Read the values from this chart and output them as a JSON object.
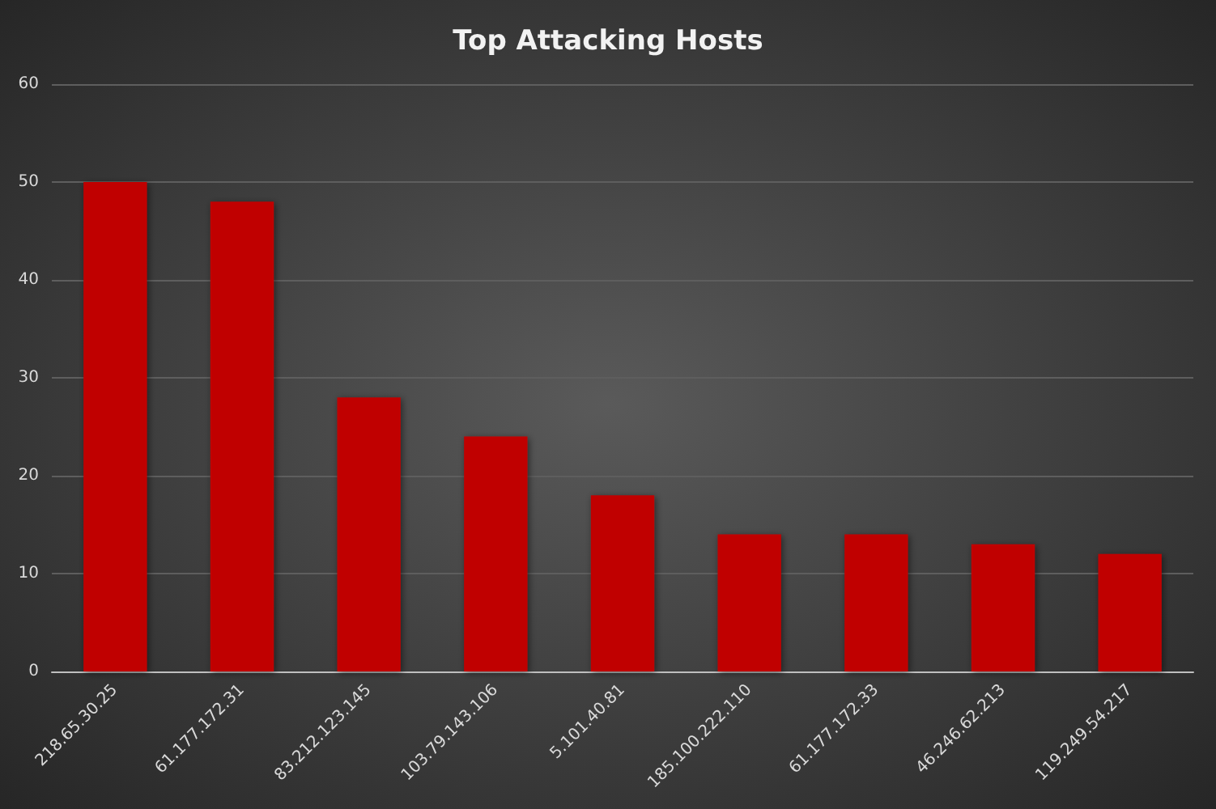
{
  "chart_data": {
    "type": "bar",
    "title": "Top Attacking Hosts",
    "categories": [
      "218.65.30.25",
      "61.177.172.31",
      "83.212.123.145",
      "103.79.143.106",
      "5.101.40.81",
      "185.100.222.110",
      "61.177.172.33",
      "46.246.62.213",
      "119.249.54.217"
    ],
    "values": [
      50,
      48,
      28,
      24,
      18,
      14,
      14,
      13,
      12
    ],
    "color": "#c00000",
    "ylim": [
      0,
      60
    ],
    "yticks": [
      0,
      10,
      20,
      30,
      40,
      50,
      60
    ],
    "grid": "y"
  }
}
